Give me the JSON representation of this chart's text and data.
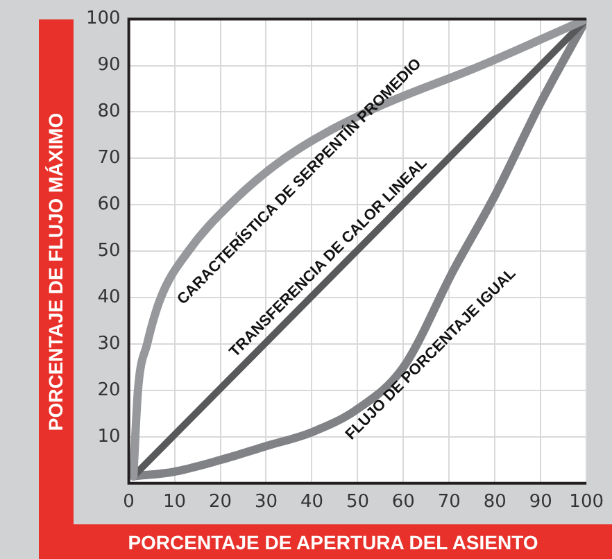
{
  "chart_data": {
    "type": "line",
    "xlabel": "PORCENTAJE DE APERTURA DEL ASIENTO",
    "ylabel": "PORCENTAJE DE FLUJO MÁXIMO",
    "series": [
      {
        "color": "#96989b",
        "x": [
          1,
          2,
          4,
          7,
          13,
          22,
          34,
          52,
          77,
          100
        ],
        "values": [
          1.5,
          20,
          30,
          40,
          50,
          60,
          70,
          80,
          90,
          100
        ]
      },
      {
        "color": "#58595b",
        "x": [
          1,
          100
        ],
        "values": [
          1.5,
          100
        ]
      },
      {
        "color": "#808285",
        "x": [
          1,
          10,
          20,
          30,
          40,
          50,
          60,
          71,
          80,
          90,
          100
        ],
        "values": [
          1.5,
          2.5,
          5,
          8,
          11,
          16,
          25,
          46,
          62,
          82,
          100
        ]
      }
    ],
    "annotations": [
      "CARACTERÍSTICA DE SERPENTÍN PROMEDIO",
      "TRANSFERENCIA DE CALOR LINEAL",
      "FLUJO DE PORCENTAJE IGUAL"
    ],
    "xlim": [
      0,
      100
    ],
    "xticks": [
      0,
      10,
      20,
      30,
      40,
      50,
      60,
      70,
      80,
      90,
      100
    ],
    "ylim": [
      0,
      100
    ],
    "yticks": [
      10,
      20,
      30,
      40,
      50,
      60,
      70,
      80,
      90,
      100
    ],
    "grid": true,
    "legend": false,
    "marker": "none",
    "line_style": "solid"
  }
}
